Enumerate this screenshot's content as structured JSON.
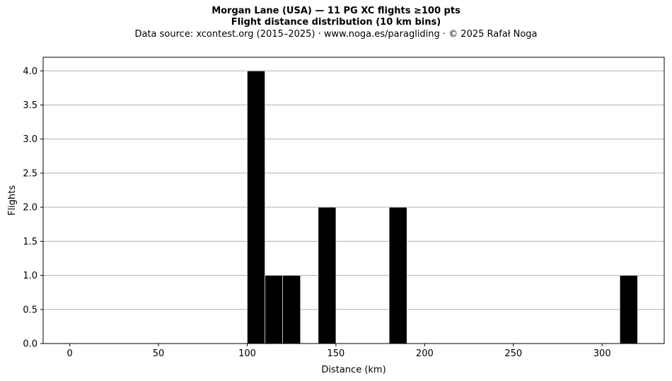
{
  "chart_data": {
    "type": "bar",
    "title_line1": "Morgan Lane (USA)  —  11 PG XC flights ≥100 pts",
    "title_line2": "Flight distance distribution (10 km bins)",
    "subtitle": "Data source: xcontest.org (2015–2025)  ·  www.noga.es/paragliding  ·  © 2025 Rafał Noga",
    "xlabel": "Distance (km)",
    "ylabel": "Flights",
    "xlim": [
      -15,
      335
    ],
    "ylim": [
      0,
      4.2
    ],
    "xticks": [
      0,
      50,
      100,
      150,
      200,
      250,
      300
    ],
    "yticks": [
      0.0,
      0.5,
      1.0,
      1.5,
      2.0,
      2.5,
      3.0,
      3.5,
      4.0
    ],
    "ytick_labels": [
      "0.0",
      "0.5",
      "1.0",
      "1.5",
      "2.0",
      "2.5",
      "3.0",
      "3.5",
      "4.0"
    ],
    "bin_width": 10,
    "bins": [
      {
        "x_start": 100,
        "x_end": 110,
        "count": 4
      },
      {
        "x_start": 110,
        "x_end": 120,
        "count": 1
      },
      {
        "x_start": 120,
        "x_end": 130,
        "count": 1
      },
      {
        "x_start": 140,
        "x_end": 150,
        "count": 2
      },
      {
        "x_start": 180,
        "x_end": 190,
        "count": 2
      },
      {
        "x_start": 310,
        "x_end": 320,
        "count": 1
      }
    ],
    "grid": "horizontal",
    "bar_color": "#000000",
    "bar_edge_color": "#ffffff",
    "grid_color": "#b0b0b0"
  }
}
